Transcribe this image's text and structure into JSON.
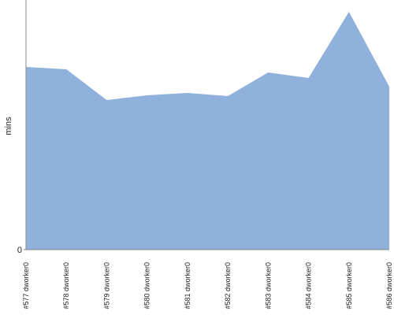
{
  "chart_data": {
    "type": "area",
    "categories": [
      "#577 dworker0",
      "#578 dworker0",
      "#579 dworker0",
      "#580 dworker0",
      "#581 dworker0",
      "#582 dworker0",
      "#583 dworker0",
      "#584 dworker0",
      "#585 dworker0",
      "#586 dworker0"
    ],
    "values": [
      232,
      229,
      190,
      196,
      199,
      195,
      225,
      218,
      302,
      207
    ],
    "color": "#8fb1db",
    "y_label": "mins",
    "ylim": [
      0,
      317
    ],
    "yticks": [
      0
    ]
  }
}
